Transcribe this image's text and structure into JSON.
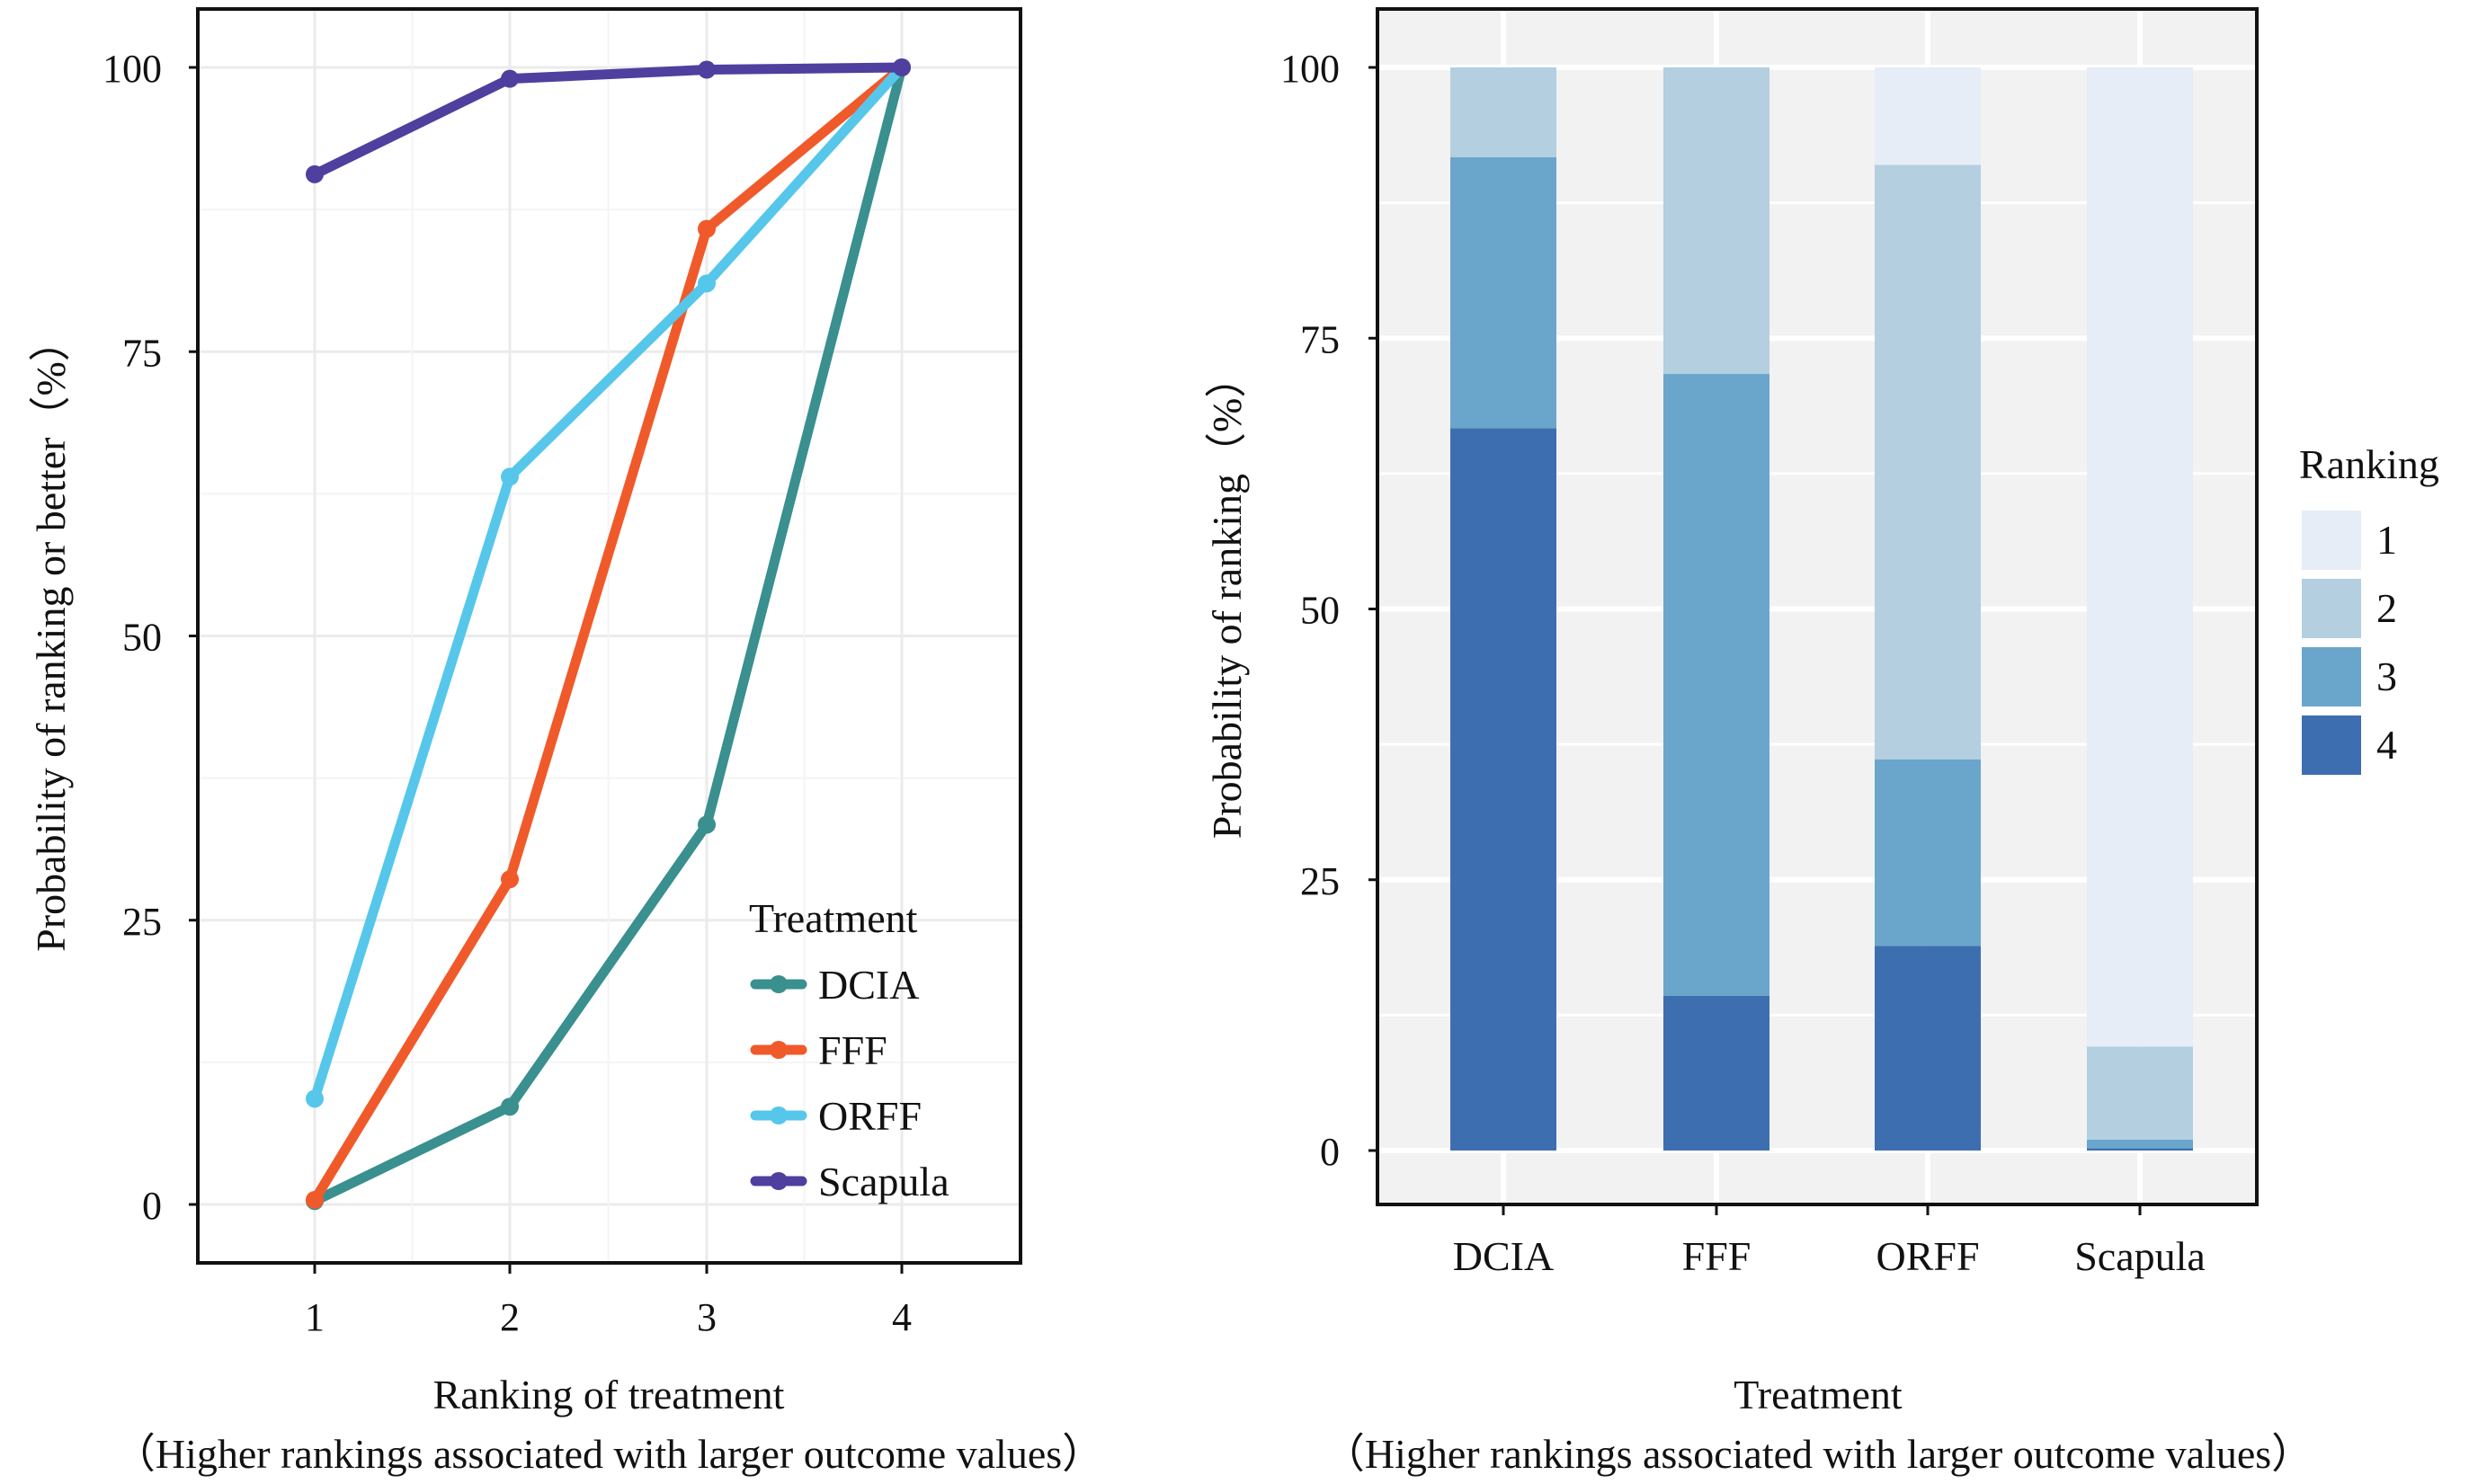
{
  "chart_data": [
    {
      "type": "line",
      "xlabel": "Ranking of treatment",
      "xlabel_note": "（Higher rankings associated with larger outcome values）",
      "ylabel": "Probability of ranking or better（%）",
      "x": [
        1,
        2,
        3,
        4
      ],
      "xticks": [
        "1",
        "2",
        "3",
        "4"
      ],
      "yticks": [
        "0",
        "25",
        "50",
        "75",
        "100"
      ],
      "ylim": [
        0,
        100
      ],
      "grid": true,
      "legend_title": "Treatment",
      "legend_position": "bottom-right",
      "series": [
        {
          "name": "DCIA",
          "color": "#3a8f8f",
          "values": [
            0.3,
            8.6,
            33.4,
            100
          ]
        },
        {
          "name": "FFF",
          "color": "#f05a2a",
          "values": [
            0.4,
            28.6,
            85.8,
            100
          ]
        },
        {
          "name": "ORFF",
          "color": "#56c7ea",
          "values": [
            9.3,
            64.0,
            81.0,
            100
          ]
        },
        {
          "name": "Scapula",
          "color": "#4f3f9e",
          "values": [
            90.6,
            99.0,
            99.8,
            100
          ]
        }
      ]
    },
    {
      "type": "bar",
      "stacked": true,
      "xlabel": "Treatment",
      "xlabel_note": "（Higher rankings associated with larger outcome values）",
      "ylabel": "Probability of ranking（%）",
      "categories": [
        "DCIA",
        "FFF",
        "ORFF",
        "Scapula"
      ],
      "yticks": [
        "0",
        "25",
        "50",
        "75",
        "100"
      ],
      "ylim": [
        0,
        100
      ],
      "grid": true,
      "legend_title": "Ranking",
      "legend_position": "right",
      "series": [
        {
          "name": "4",
          "color": "#3d6fb0",
          "values": [
            66.7,
            14.3,
            18.9,
            0.2
          ]
        },
        {
          "name": "3",
          "color": "#6aa6cb",
          "values": [
            25.0,
            57.4,
            17.2,
            0.8
          ]
        },
        {
          "name": "2",
          "color": "#b3cfe0",
          "values": [
            8.3,
            28.3,
            54.9,
            8.6
          ]
        },
        {
          "name": "1",
          "color": "#e6edf7",
          "values": [
            0.0,
            0.0,
            9.0,
            90.4
          ]
        }
      ]
    }
  ]
}
